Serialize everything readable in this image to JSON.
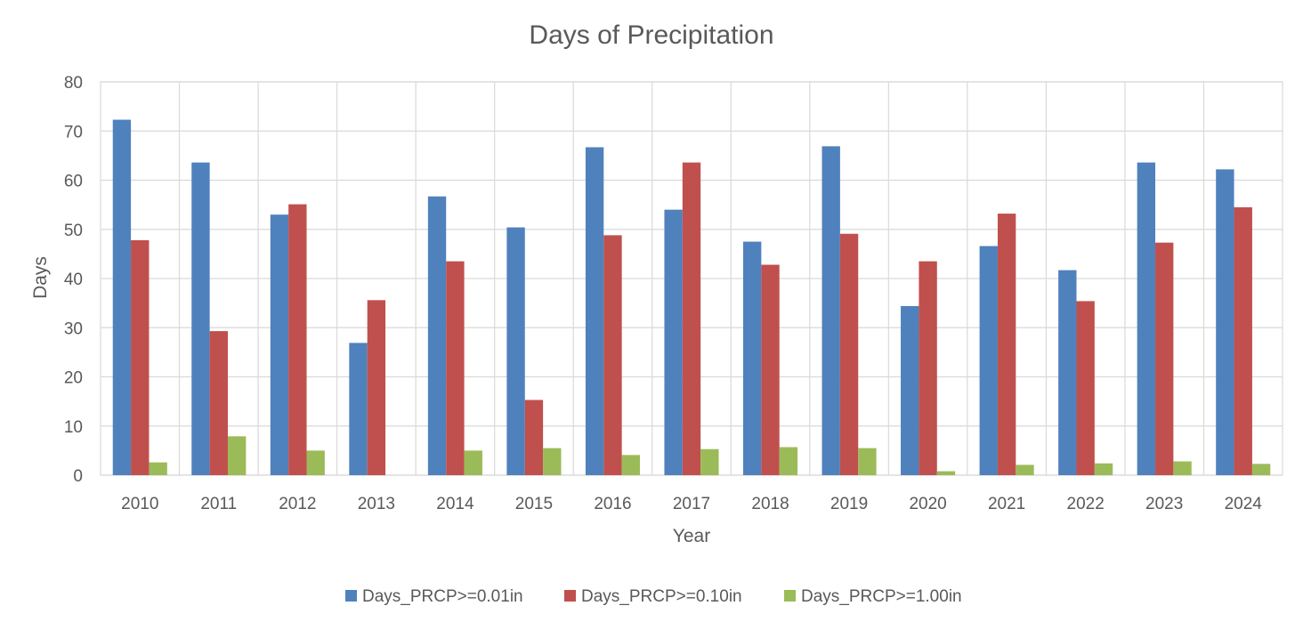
{
  "chart_data": {
    "type": "bar",
    "title": "Days of Precipitation",
    "xlabel": "Year",
    "ylabel": "Days",
    "ylim": [
      0,
      80
    ],
    "yticks": [
      0,
      10,
      20,
      30,
      40,
      50,
      60,
      70,
      80
    ],
    "grid": true,
    "legend_position": "bottom",
    "categories": [
      "2010",
      "2011",
      "2012",
      "2013",
      "2014",
      "2015",
      "2016",
      "2017",
      "2018",
      "2019",
      "2020",
      "2021",
      "2022",
      "2023",
      "2024"
    ],
    "series": [
      {
        "name": "Days_PRCP>=0.01in",
        "color": "#4f81bd",
        "values": [
          72.3,
          63.6,
          53,
          26.9,
          56.7,
          50.4,
          66.7,
          54,
          47.5,
          66.9,
          34.4,
          46.6,
          41.7,
          63.6,
          62.2
        ]
      },
      {
        "name": "Days_PRCP>=0.10in",
        "color": "#c0504d",
        "values": [
          47.8,
          29.3,
          55.1,
          35.6,
          43.5,
          15.3,
          48.8,
          63.6,
          42.8,
          49.1,
          43.5,
          53.2,
          35.4,
          47.3,
          54.5
        ]
      },
      {
        "name": "Days_PRCP>=1.00in",
        "color": "#9bbb59",
        "values": [
          2.6,
          7.9,
          5,
          0,
          5,
          5.5,
          4.1,
          5.3,
          5.7,
          5.5,
          0.8,
          2.1,
          2.4,
          2.8,
          2.3
        ]
      }
    ]
  }
}
